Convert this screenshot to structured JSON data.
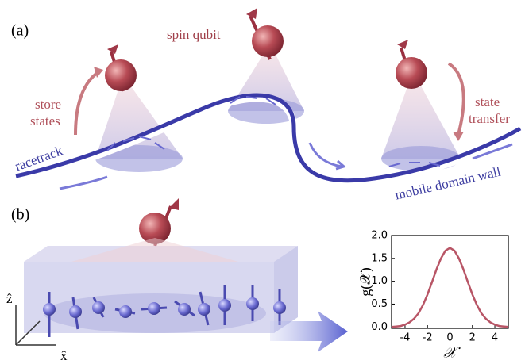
{
  "figure": {
    "panel_a": "(a)",
    "panel_b": "(b)",
    "spin_qubit": "spin qubit",
    "store_1": "store",
    "store_2": "states",
    "racetrack": "racetrack",
    "transfer_1": "state",
    "transfer_2": "transfer",
    "domain_wall": "mobile domain wall",
    "axis_z": "ẑ",
    "axis_x": "x̂"
  },
  "chart_data": {
    "type": "line",
    "xlabel": "𝒳",
    "ylabel": "g(𝒳)",
    "color": "#b85566",
    "x": [
      -5.2,
      -4.8,
      -4.4,
      -4.0,
      -3.6,
      -3.2,
      -2.8,
      -2.4,
      -2.0,
      -1.6,
      -1.2,
      -0.8,
      -0.4,
      0,
      0.4,
      0.8,
      1.2,
      1.6,
      2.0,
      2.4,
      2.8,
      3.2,
      3.6,
      4.0,
      4.4,
      4.8,
      5.2
    ],
    "values": [
      0.0,
      0.01,
      0.02,
      0.05,
      0.1,
      0.18,
      0.3,
      0.48,
      0.71,
      0.98,
      1.26,
      1.5,
      1.67,
      1.73,
      1.67,
      1.5,
      1.26,
      0.98,
      0.71,
      0.48,
      0.3,
      0.18,
      0.1,
      0.05,
      0.02,
      0.01,
      0.0
    ],
    "xlim": [
      -5.2,
      5.2
    ],
    "ylim": [
      -0.03,
      2.0
    ],
    "xticks": [
      -4,
      -2,
      0,
      2,
      4
    ],
    "yticks": [
      {
        "value": 0,
        "label": "0.0"
      },
      {
        "value": 0.5,
        "label": "0.5"
      },
      {
        "value": 1,
        "label": "1.0"
      },
      {
        "value": 1.5,
        "label": "1.5"
      },
      {
        "value": 2,
        "label": "2.0"
      }
    ]
  }
}
